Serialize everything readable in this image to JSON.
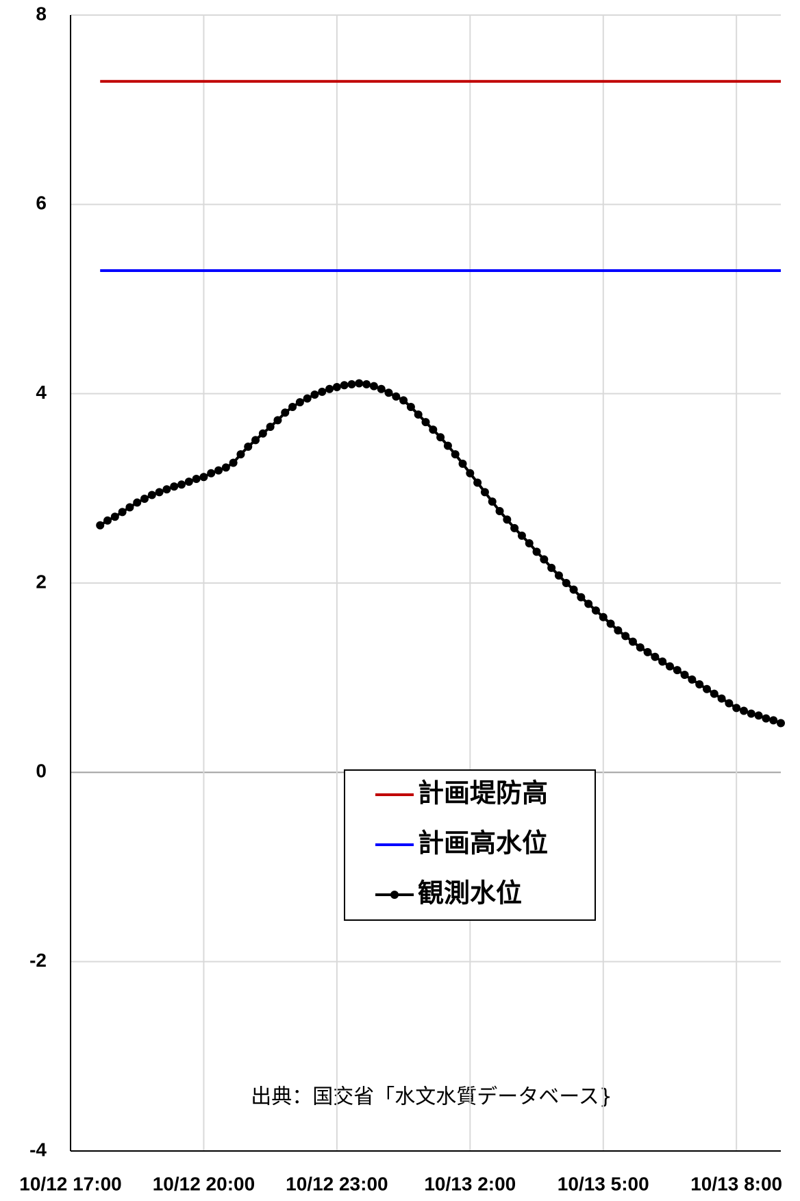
{
  "chart_data": {
    "type": "line",
    "source": "出典：国交省「水文水質データベース}",
    "xlim": [
      "10/12 17:00",
      "10/13 9:00"
    ],
    "xticks": [
      "10/12 17:00",
      "10/12 20:00",
      "10/12 23:00",
      "10/13 2:00",
      "10/13 5:00",
      "10/13 8:00"
    ],
    "ylim": [
      -4,
      8
    ],
    "yticks": [
      -4,
      -2,
      0,
      2,
      4,
      6,
      8
    ],
    "grid": true,
    "series": [
      {
        "name": "計画堤防高",
        "color": "#c00000",
        "marker": false,
        "x": [
          "10/12 17:40",
          "10/13 9:00"
        ],
        "values": [
          7.3,
          7.3
        ]
      },
      {
        "name": "計画高水位",
        "color": "#0000ff",
        "marker": false,
        "x": [
          "10/12 17:40",
          "10/13 9:00"
        ],
        "values": [
          5.3,
          5.3
        ]
      },
      {
        "name": "観測水位",
        "color": "#000000",
        "marker": true,
        "x": [
          "10/12 17:40",
          "10/12 17:50",
          "10/12 18:00",
          "10/12 18:10",
          "10/12 18:20",
          "10/12 18:30",
          "10/12 18:40",
          "10/12 18:50",
          "10/12 19:00",
          "10/12 19:10",
          "10/12 19:20",
          "10/12 19:30",
          "10/12 19:40",
          "10/12 19:50",
          "10/12 20:00",
          "10/12 20:10",
          "10/12 20:20",
          "10/12 20:30",
          "10/12 20:40",
          "10/12 20:50",
          "10/12 21:00",
          "10/12 21:10",
          "10/12 21:20",
          "10/12 21:30",
          "10/12 21:40",
          "10/12 21:50",
          "10/12 22:00",
          "10/12 22:10",
          "10/12 22:20",
          "10/12 22:30",
          "10/12 22:40",
          "10/12 22:50",
          "10/12 23:00",
          "10/12 23:10",
          "10/12 23:20",
          "10/12 23:30",
          "10/12 23:40",
          "10/12 23:50",
          "10/13 0:00",
          "10/13 0:10",
          "10/13 0:20",
          "10/13 0:30",
          "10/13 0:40",
          "10/13 0:50",
          "10/13 1:00",
          "10/13 1:10",
          "10/13 1:20",
          "10/13 1:30",
          "10/13 1:40",
          "10/13 1:50",
          "10/13 2:00",
          "10/13 2:10",
          "10/13 2:20",
          "10/13 2:30",
          "10/13 2:40",
          "10/13 2:50",
          "10/13 3:00",
          "10/13 3:10",
          "10/13 3:20",
          "10/13 3:30",
          "10/13 3:40",
          "10/13 3:50",
          "10/13 4:00",
          "10/13 4:10",
          "10/13 4:20",
          "10/13 4:30",
          "10/13 4:40",
          "10/13 4:50",
          "10/13 5:00",
          "10/13 5:10",
          "10/13 5:20",
          "10/13 5:30",
          "10/13 5:40",
          "10/13 5:50",
          "10/13 6:00",
          "10/13 6:10",
          "10/13 6:20",
          "10/13 6:30",
          "10/13 6:40",
          "10/13 6:50",
          "10/13 7:00",
          "10/13 7:10",
          "10/13 7:20",
          "10/13 7:30",
          "10/13 7:40",
          "10/13 7:50",
          "10/13 8:00",
          "10/13 8:10",
          "10/13 8:20",
          "10/13 8:30",
          "10/13 8:40",
          "10/13 8:50",
          "10/13 9:00"
        ],
        "values": [
          2.61,
          2.66,
          2.7,
          2.75,
          2.8,
          2.85,
          2.89,
          2.93,
          2.96,
          2.99,
          3.02,
          3.04,
          3.07,
          3.1,
          3.12,
          3.16,
          3.19,
          3.22,
          3.27,
          3.36,
          3.44,
          3.51,
          3.58,
          3.65,
          3.72,
          3.8,
          3.86,
          3.91,
          3.95,
          3.99,
          4.02,
          4.05,
          4.07,
          4.09,
          4.1,
          4.11,
          4.1,
          4.08,
          4.05,
          4.01,
          3.97,
          3.93,
          3.86,
          3.78,
          3.7,
          3.62,
          3.54,
          3.45,
          3.36,
          3.26,
          3.16,
          3.06,
          2.96,
          2.86,
          2.76,
          2.67,
          2.58,
          2.5,
          2.42,
          2.33,
          2.25,
          2.16,
          2.08,
          2.0,
          1.93,
          1.85,
          1.78,
          1.71,
          1.64,
          1.57,
          1.5,
          1.44,
          1.38,
          1.32,
          1.27,
          1.22,
          1.17,
          1.12,
          1.08,
          1.03,
          0.98,
          0.93,
          0.88,
          0.83,
          0.78,
          0.73,
          0.68,
          0.65,
          0.62,
          0.6,
          0.57,
          0.55,
          0.52
        ]
      }
    ]
  }
}
